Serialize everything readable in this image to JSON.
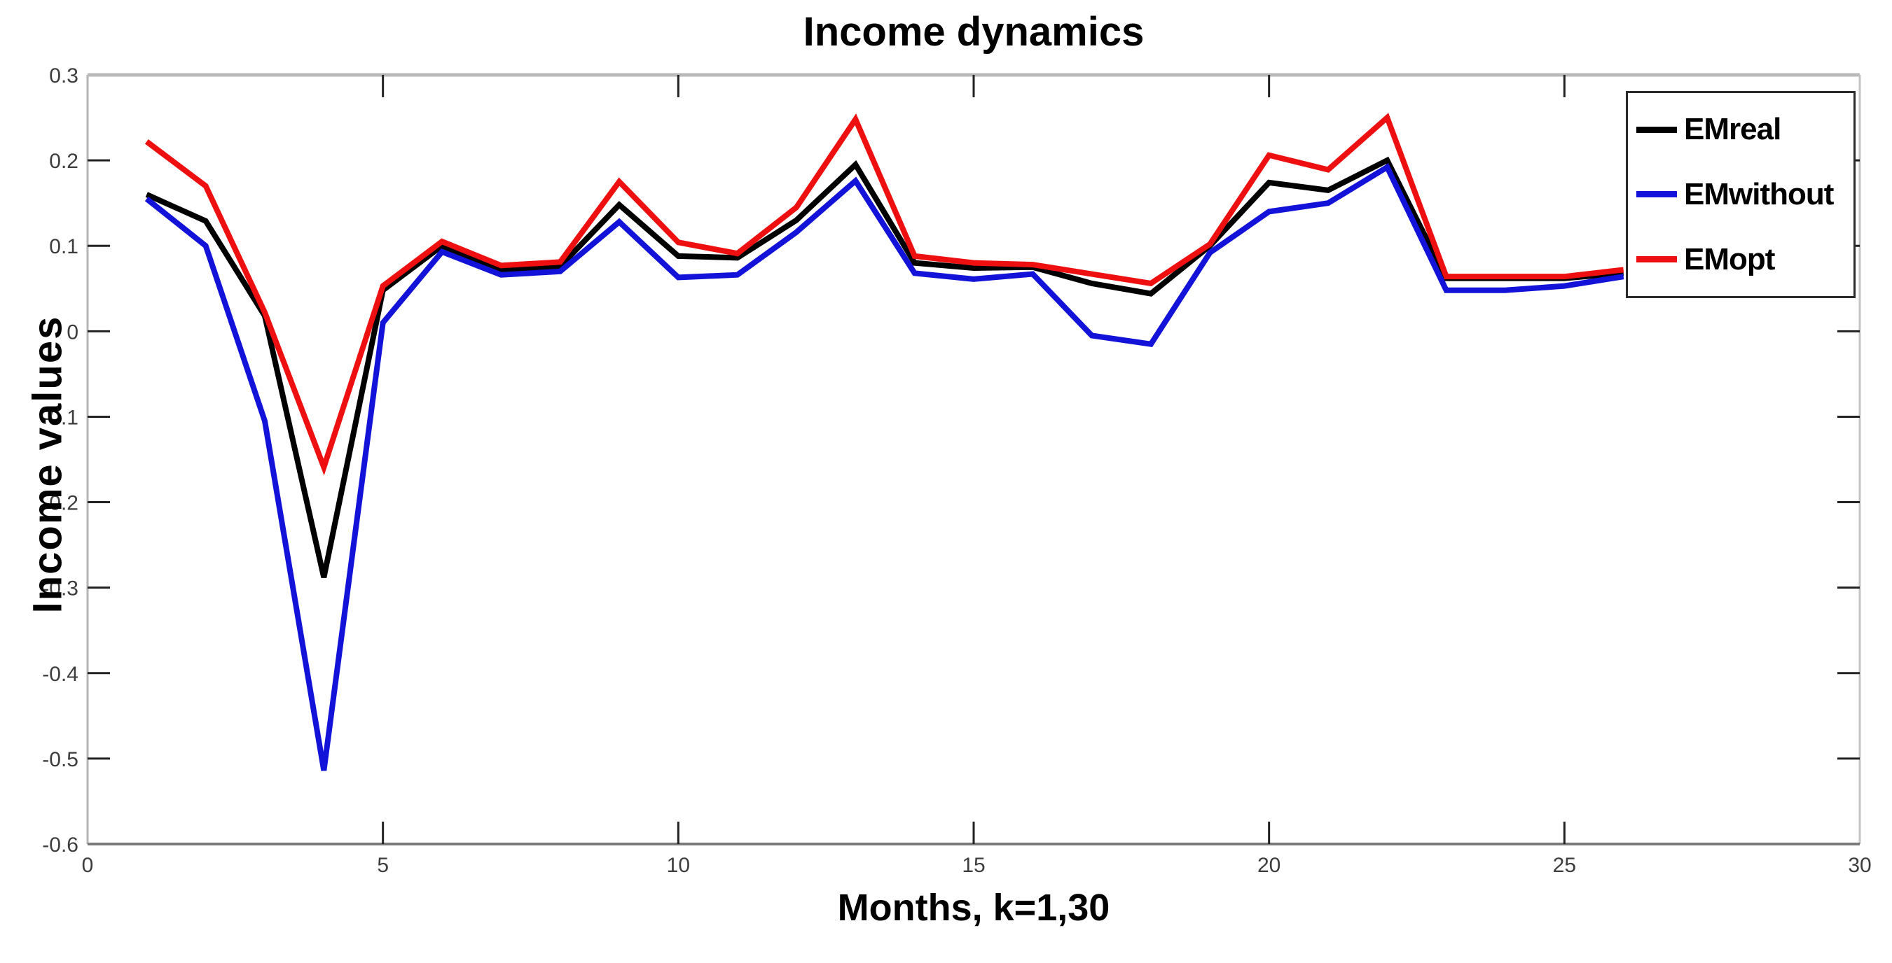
{
  "chart_data": {
    "type": "line",
    "title": "Income dynamics",
    "xlabel": "Months, k=1,30",
    "ylabel": "Income values",
    "x": [
      1,
      2,
      3,
      4,
      5,
      6,
      7,
      8,
      9,
      10,
      11,
      12,
      13,
      14,
      15,
      16,
      17,
      18,
      19,
      20,
      21,
      22,
      23,
      24,
      25,
      26
    ],
    "series": [
      {
        "name": "EMreal",
        "color": "#000000",
        "values": [
          0.16,
          0.129,
          0.018,
          -0.288,
          0.048,
          0.1,
          0.072,
          0.076,
          0.148,
          0.088,
          0.086,
          0.13,
          0.195,
          0.08,
          0.074,
          0.075,
          0.056,
          0.044,
          0.1,
          0.174,
          0.165,
          0.2,
          0.062,
          0.062,
          0.062,
          0.068
        ]
      },
      {
        "name": "EMwithout",
        "color": "#1212d9",
        "values": [
          0.155,
          0.1,
          -0.105,
          -0.514,
          0.01,
          0.093,
          0.066,
          0.07,
          0.128,
          0.063,
          0.066,
          0.116,
          0.176,
          0.068,
          0.061,
          0.067,
          -0.005,
          -0.015,
          0.092,
          0.14,
          0.15,
          0.192,
          0.048,
          0.048,
          0.053,
          0.064
        ]
      },
      {
        "name": "EMopt",
        "color": "#ee1010",
        "values": [
          0.222,
          0.17,
          0.022,
          -0.159,
          0.053,
          0.105,
          0.077,
          0.081,
          0.175,
          0.104,
          0.091,
          0.145,
          0.248,
          0.088,
          0.08,
          0.078,
          0.067,
          0.056,
          0.102,
          0.206,
          0.189,
          0.25,
          0.064,
          0.064,
          0.064,
          0.072
        ]
      }
    ],
    "xlim": [
      0,
      30
    ],
    "ylim": [
      -0.6,
      0.3
    ],
    "x_ticks": {
      "values": [
        0,
        5,
        10,
        15,
        20,
        25,
        30
      ],
      "labels": [
        "0",
        "5",
        "10",
        "15",
        "20",
        "25",
        "30"
      ]
    },
    "y_ticks": {
      "values": [
        0.3,
        0.2,
        0.1,
        0,
        -0.1,
        -0.2,
        -0.3,
        -0.4,
        -0.5,
        -0.6
      ],
      "labels": [
        "0.3",
        "0.2",
        "0.1",
        "0",
        "-0.1",
        "-0.2",
        "-0.3",
        "-0.4",
        "-0.5",
        "-0.6"
      ]
    },
    "grid": "off",
    "legend_position": "top-right",
    "line_width": 8
  },
  "styles": {
    "axis_top_color": "#b9b9b9",
    "axis_right_color": "#c4c4c4",
    "axis_left_color": "#b5b5b5",
    "axis_bottom_color": "#7a7a7a",
    "tick_color": "#222222",
    "tick_label_color": "#3d3d3d",
    "legend_border_color": "#2b2b2b",
    "background_color": "#ffffff"
  }
}
